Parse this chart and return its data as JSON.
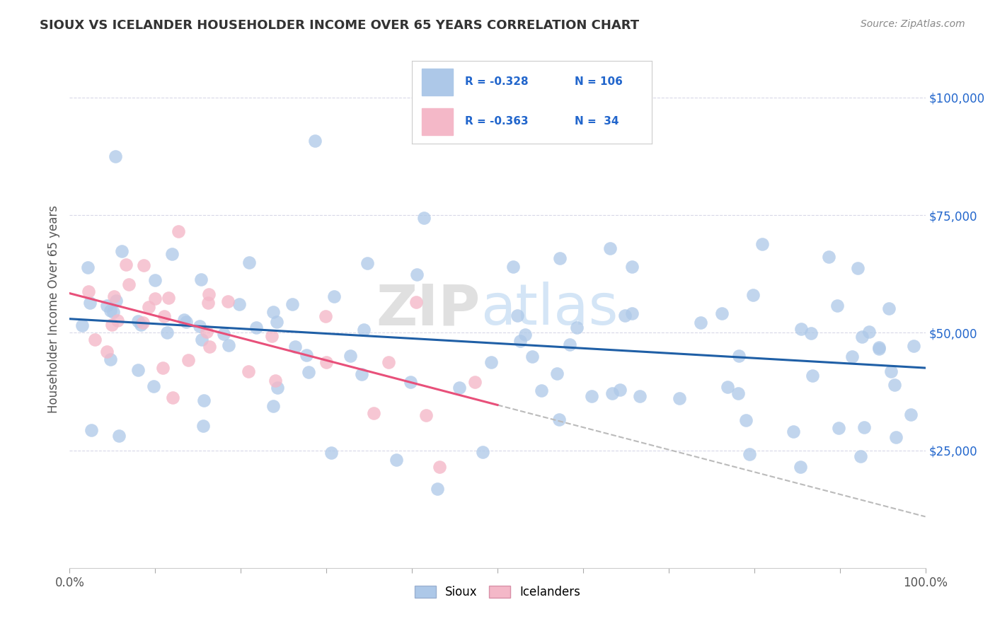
{
  "title": "SIOUX VS ICELANDER HOUSEHOLDER INCOME OVER 65 YEARS CORRELATION CHART",
  "source": "Source: ZipAtlas.com",
  "ylabel": "Householder Income Over 65 years",
  "xlim": [
    0,
    1.0
  ],
  "ylim": [
    0,
    110000
  ],
  "ytick_labels": [
    "$25,000",
    "$50,000",
    "$75,000",
    "$100,000"
  ],
  "ytick_values": [
    25000,
    50000,
    75000,
    100000
  ],
  "legend_r_sioux": "-0.328",
  "legend_n_sioux": "106",
  "legend_r_icelander": "-0.363",
  "legend_n_icelander": "34",
  "sioux_color": "#adc8e8",
  "icelander_color": "#f4b8c8",
  "sioux_line_color": "#1f5fa6",
  "icelander_line_color": "#e8507a",
  "watermark_zip": "ZIP",
  "watermark_atlas": "atlas",
  "background_color": "#ffffff",
  "grid_color": "#d8d8e8",
  "title_color": "#333333",
  "source_color": "#888888",
  "ylabel_color": "#555555",
  "tick_color": "#555555",
  "ytick_color": "#2266cc",
  "legend_text_color": "#2266cc",
  "sioux_seed": 42,
  "icelander_seed": 77
}
